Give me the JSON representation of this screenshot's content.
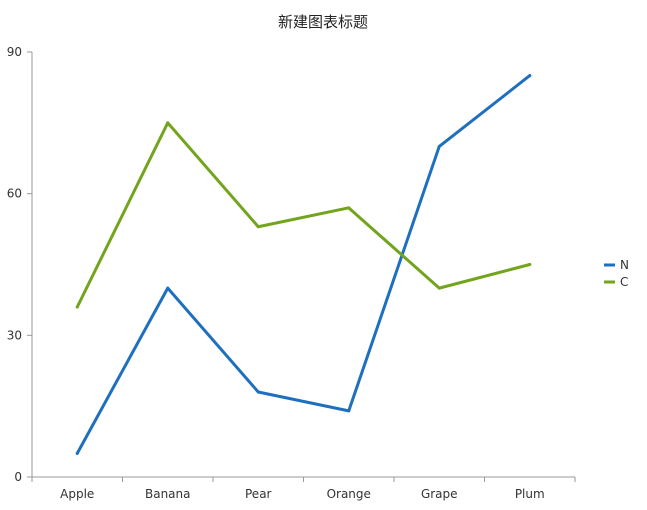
{
  "chart_data": {
    "type": "line",
    "title": "新建图表标题",
    "xlabel": "",
    "ylabel": "",
    "categories": [
      "Apple",
      "Banana",
      "Pear",
      "Orange",
      "Grape",
      "Plum"
    ],
    "ylim": [
      0,
      90
    ],
    "yticks": [
      "0",
      "30",
      "60",
      "90"
    ],
    "grid": false,
    "legend_position": "right",
    "series": [
      {
        "name": "N",
        "color": "#1f6fbf",
        "values": [
          5,
          40,
          18,
          14,
          70,
          85
        ]
      },
      {
        "name": "C",
        "color": "#72a41c",
        "values": [
          36,
          75,
          53,
          57,
          40,
          45
        ]
      }
    ]
  }
}
